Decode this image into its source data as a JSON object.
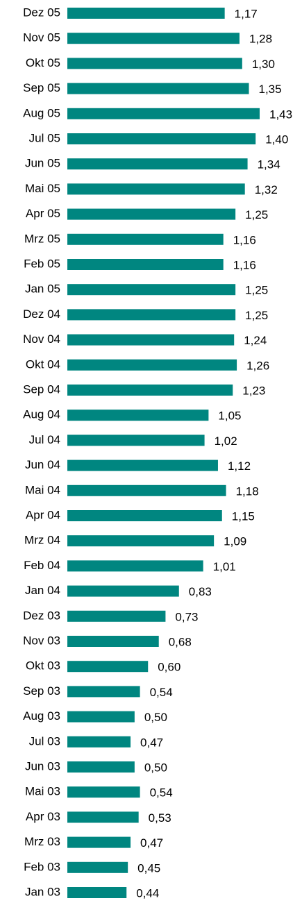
{
  "chart_data": {
    "type": "bar",
    "orientation": "horizontal",
    "categories": [
      "Dez 05",
      "Nov 05",
      "Okt 05",
      "Sep 05",
      "Aug 05",
      "Jul 05",
      "Jun 05",
      "Mai 05",
      "Apr 05",
      "Mrz 05",
      "Feb 05",
      "Jan 05",
      "Dez 04",
      "Nov 04",
      "Okt 04",
      "Sep 04",
      "Aug 04",
      "Jul 04",
      "Jun 04",
      "Mai 04",
      "Apr 04",
      "Mrz 04",
      "Feb 04",
      "Jan 04",
      "Dez 03",
      "Nov 03",
      "Okt 03",
      "Sep 03",
      "Aug 03",
      "Jul 03",
      "Jun 03",
      "Mai 03",
      "Apr 03",
      "Mrz 03",
      "Feb 03",
      "Jan 03"
    ],
    "values": [
      1.17,
      1.28,
      1.3,
      1.35,
      1.43,
      1.4,
      1.34,
      1.32,
      1.25,
      1.16,
      1.16,
      1.25,
      1.25,
      1.24,
      1.26,
      1.23,
      1.05,
      1.02,
      1.12,
      1.18,
      1.15,
      1.09,
      1.01,
      0.83,
      0.73,
      0.68,
      0.6,
      0.54,
      0.5,
      0.47,
      0.5,
      0.54,
      0.53,
      0.47,
      0.45,
      0.44
    ],
    "value_labels": [
      "1,17",
      "1,28",
      "1,30",
      "1,35",
      "1,43",
      "1,40",
      "1,34",
      "1,32",
      "1,25",
      "1,16",
      "1,16",
      "1,25",
      "1,25",
      "1,24",
      "1,26",
      "1,23",
      "1,05",
      "1,02",
      "1,12",
      "1,18",
      "1,15",
      "1,09",
      "1,01",
      "0,83",
      "0,73",
      "0,68",
      "0,60",
      "0,54",
      "0,50",
      "0,47",
      "0,50",
      "0,54",
      "0,53",
      "0,47",
      "0,45",
      "0,44"
    ],
    "color": "#008680",
    "xlim": [
      0,
      1.75
    ]
  }
}
